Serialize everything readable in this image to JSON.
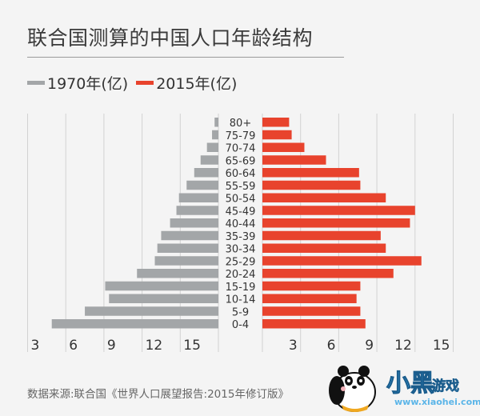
{
  "chart_data": {
    "type": "bar",
    "orientation": "horizontal-pyramid",
    "title": "联合国测算的中国人口年龄结构",
    "categories": [
      "80+",
      "75-79",
      "70-74",
      "65-69",
      "60-64",
      "55-59",
      "50-54",
      "45-49",
      "40-44",
      "35-39",
      "30-34",
      "25-29",
      "20-24",
      "15-19",
      "10-14",
      "5-9",
      "0-4"
    ],
    "series": [
      {
        "name": "1970年(亿)",
        "side": "left",
        "color": "#a3a6a8",
        "values": [
          0.3,
          0.5,
          0.9,
          1.4,
          1.9,
          2.5,
          3.1,
          3.3,
          3.8,
          4.5,
          4.8,
          5.0,
          6.4,
          8.9,
          8.6,
          10.5,
          13.1
        ]
      },
      {
        "name": "2015年(亿)",
        "side": "right",
        "color": "#e8432d",
        "values": [
          2.1,
          2.3,
          3.3,
          5.0,
          7.6,
          7.7,
          9.7,
          12.0,
          11.6,
          9.3,
          9.7,
          12.5,
          10.3,
          7.7,
          7.4,
          7.7,
          8.1
        ]
      }
    ],
    "left_tick_labels": [
      "3",
      "6",
      "9",
      "12",
      "15"
    ],
    "right_tick_labels": [
      "3",
      "6",
      "9",
      "12",
      "15"
    ],
    "tick_step": 3,
    "xlim": [
      0,
      15
    ],
    "grid": true,
    "legend": "top-left"
  },
  "title": "联合国测算的中国人口年龄结构",
  "legend": {
    "items": [
      {
        "label": "1970年(亿)",
        "color": "#a3a6a8"
      },
      {
        "label": "2015年(亿)",
        "color": "#e8432d"
      }
    ]
  },
  "source": "数据来源:联合国《世界人口展望报告:2015年修订版》",
  "watermark": {
    "text": "小黑游戏",
    "main": "小黑",
    "sub": "游戏",
    "url": "www.xiaohei.com"
  }
}
